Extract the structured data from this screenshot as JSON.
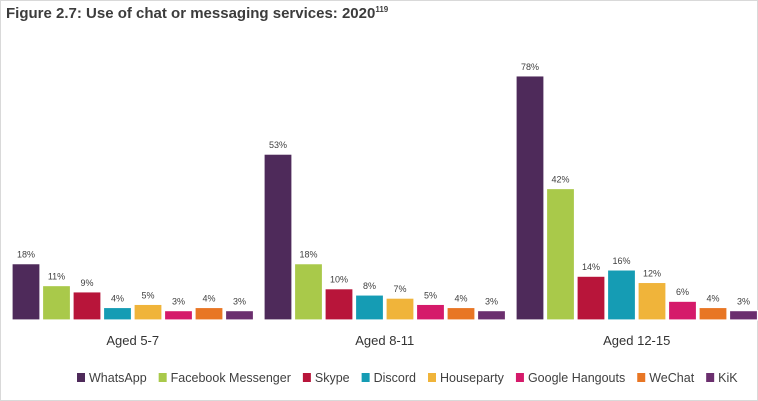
{
  "figure": {
    "title": "Figure 2.7: Use of chat or messaging services: 2020",
    "footnote": "119"
  },
  "chart_data": {
    "type": "bar",
    "title": "Figure 2.7: Use of chat or messaging services: 2020",
    "categories": [
      "Aged 5-7",
      "Aged 8-11",
      "Aged 12-15"
    ],
    "unit": "%",
    "ylim": [
      0,
      80
    ],
    "grid": false,
    "legend_position": "bottom",
    "series": [
      {
        "name": "WhatsApp",
        "color": "#4e2a5a",
        "values": [
          18,
          53,
          78
        ]
      },
      {
        "name": "Facebook Messenger",
        "color": "#a9c94a",
        "values": [
          11,
          18,
          42
        ]
      },
      {
        "name": "Skype",
        "color": "#b8153a",
        "values": [
          9,
          10,
          14
        ]
      },
      {
        "name": "Discord",
        "color": "#159cb4",
        "values": [
          4,
          8,
          16
        ]
      },
      {
        "name": "Houseparty",
        "color": "#f0b43a",
        "values": [
          5,
          7,
          12
        ]
      },
      {
        "name": "Google Hangouts",
        "color": "#d51a6a",
        "values": [
          3,
          5,
          6
        ]
      },
      {
        "name": "WeChat",
        "color": "#e87624",
        "values": [
          4,
          4,
          4
        ]
      },
      {
        "name": "KiK",
        "color": "#6b2f6e",
        "values": [
          3,
          3,
          3
        ]
      }
    ]
  }
}
